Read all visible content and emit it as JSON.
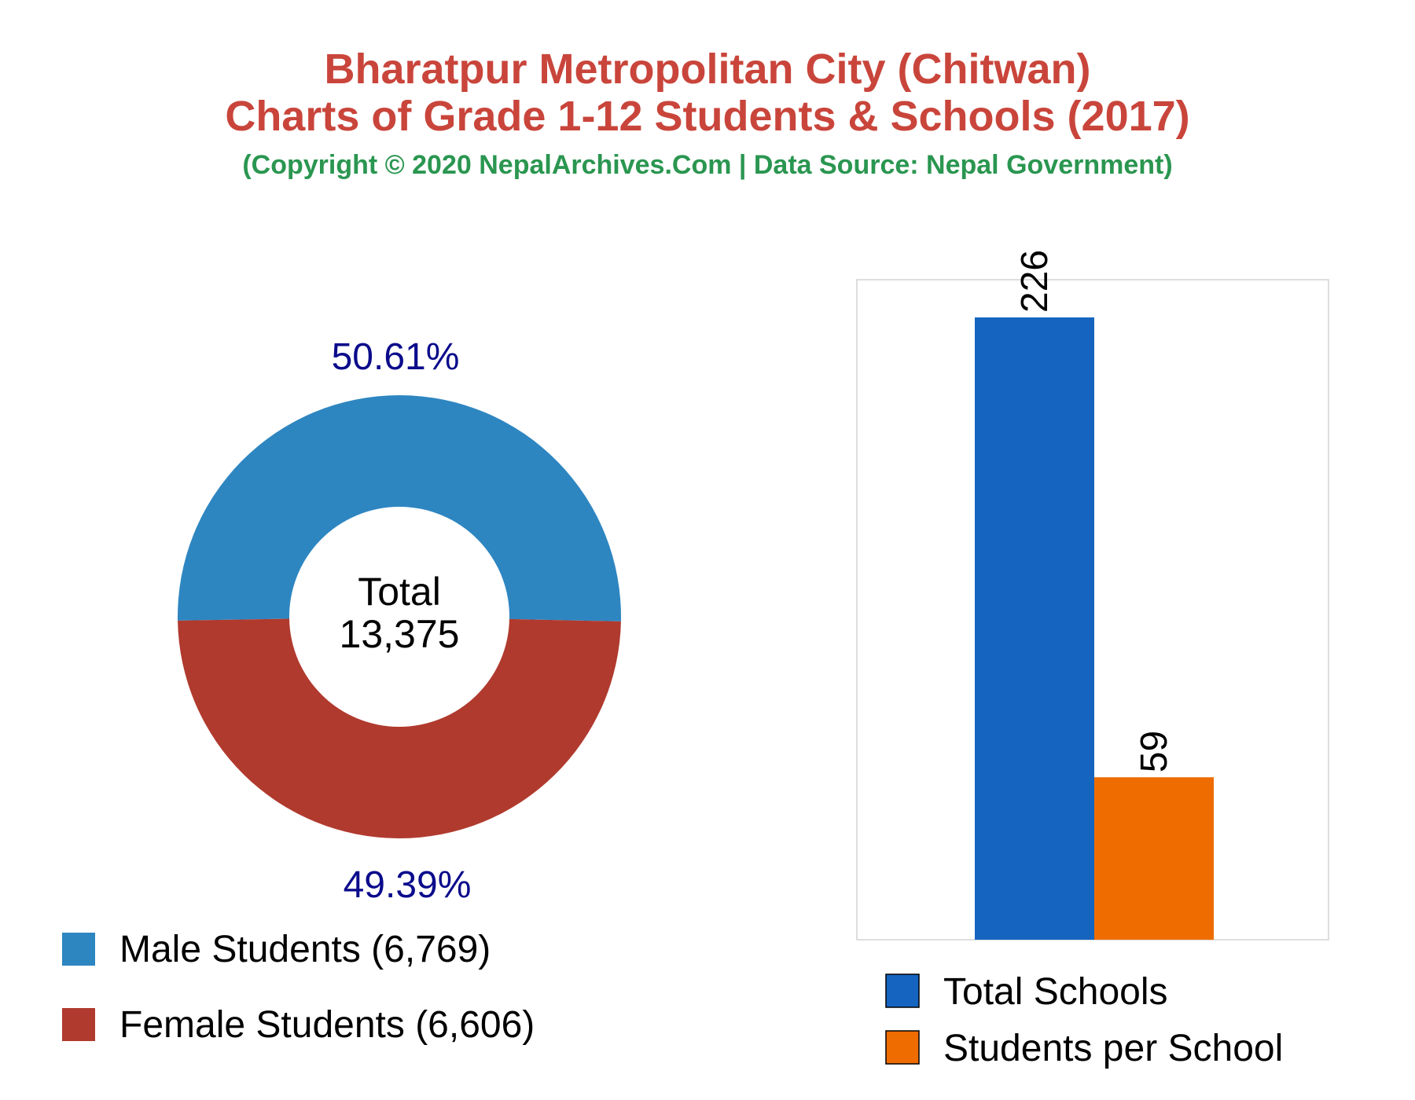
{
  "header": {
    "title_line1": "Bharatpur Metropolitan City (Chitwan)",
    "title_line2": "Charts of Grade 1-12 Students & Schools (2017)",
    "subtitle": "(Copyright © 2020 NepalArchives.Com | Data Source: Nepal Government)"
  },
  "colors": {
    "title": "#c9453b",
    "subtitle": "#2a9650",
    "male": "#2e86c1",
    "female": "#b03a2e",
    "percent_text": "#0b0b8c",
    "total_schools": "#1565c0",
    "students_per_school": "#ef6c00"
  },
  "chart_data": [
    {
      "type": "pie",
      "variant": "donut",
      "center_label": "Total",
      "center_value": "13,375",
      "slices": [
        {
          "label": "Male Students (6,769)",
          "value": 6769,
          "percent_label": "50.61%"
        },
        {
          "label": "Female Students (6,606)",
          "value": 6606,
          "percent_label": "49.39%"
        }
      ],
      "legend_position": "bottom"
    },
    {
      "type": "bar",
      "series": [
        {
          "name": "Total Schools",
          "value": 226,
          "label": "226"
        },
        {
          "name": "Students per School",
          "value": 59,
          "label": "59"
        }
      ],
      "ylim": [
        0,
        226
      ],
      "grid": false,
      "legend_position": "bottom"
    }
  ]
}
